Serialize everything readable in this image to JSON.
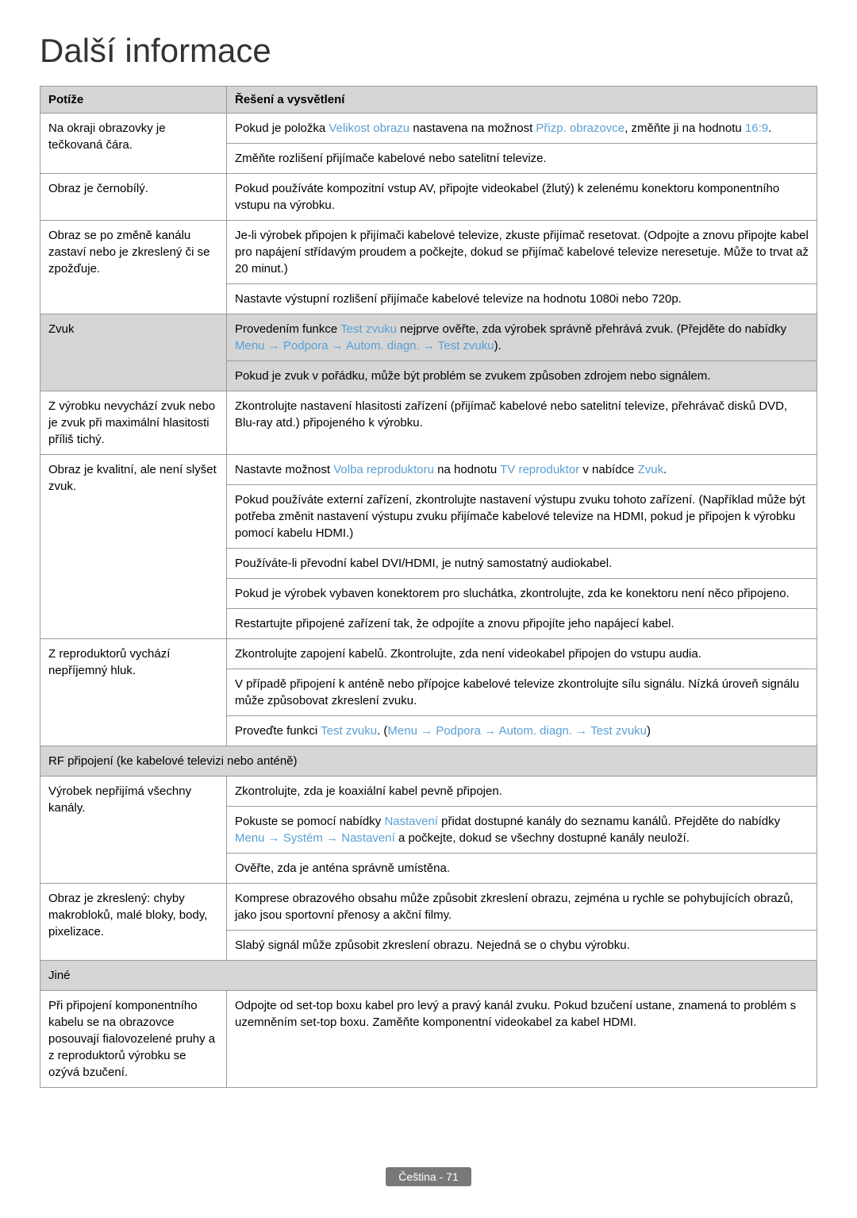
{
  "title": "Další informace",
  "colors": {
    "highlight": "#5a9fd4",
    "header_bg": "#d5d5d5",
    "border": "#999999",
    "text": "#000000",
    "badge_bg": "#787878",
    "badge_text": "#ffffff"
  },
  "headers": {
    "issue": "Potíže",
    "solution": "Řešení a vysvětlení"
  },
  "rows": [
    {
      "issue": "Na okraji obrazovky je tečkovaná čára.",
      "solutions": [
        {
          "segments": [
            {
              "t": "Pokud je položka "
            },
            {
              "t": "Velikost obrazu",
              "hl": true
            },
            {
              "t": " nastavena na možnost "
            },
            {
              "t": "Přizp. obrazovce",
              "hl": true
            },
            {
              "t": ", změňte ji na hodnotu "
            },
            {
              "t": "16:9",
              "hl": true
            },
            {
              "t": "."
            }
          ]
        },
        {
          "segments": [
            {
              "t": "Změňte rozlišení přijímače kabelové nebo satelitní televize."
            }
          ]
        }
      ]
    },
    {
      "issue": "Obraz je černobílý.",
      "solutions": [
        {
          "segments": [
            {
              "t": "Pokud používáte kompozitní vstup AV, připojte videokabel (žlutý) k zelenému konektoru komponentního vstupu na výrobku."
            }
          ]
        }
      ]
    },
    {
      "issue": "Obraz se po změně kanálu zastaví nebo je zkreslený či se zpožďuje.",
      "solutions": [
        {
          "segments": [
            {
              "t": "Je-li výrobek připojen k přijímači kabelové televize, zkuste přijímač resetovat. (Odpojte a znovu připojte kabel pro napájení střídavým proudem a počkejte, dokud se přijímač kabelové televize neresetuje. Může to trvat až 20 minut.)"
            }
          ]
        },
        {
          "segments": [
            {
              "t": "Nastavte výstupní rozlišení přijímače kabelové televize na hodnotu 1080i nebo 720p."
            }
          ]
        }
      ]
    },
    {
      "issue": "Zvuk",
      "section": false,
      "shaded_issue": true,
      "solutions": [
        {
          "segments": [
            {
              "t": "Provedením funkce "
            },
            {
              "t": "Test zvuku",
              "hl": true
            },
            {
              "t": " nejprve ověřte, zda výrobek správně přehrává zvuk. (Přejděte do nabídky "
            },
            {
              "t": "Menu",
              "hl": true
            },
            {
              "t": " → ",
              "hl": true
            },
            {
              "t": "Podpora",
              "hl": true
            },
            {
              "t": " → ",
              "hl": true
            },
            {
              "t": "Autom. diagn.",
              "hl": true
            },
            {
              "t": " → ",
              "hl": true
            },
            {
              "t": "Test zvuku",
              "hl": true
            },
            {
              "t": ")."
            }
          ]
        },
        {
          "segments": [
            {
              "t": "Pokud je zvuk v pořádku, může být problém se zvukem způsoben zdrojem nebo signálem."
            }
          ]
        }
      ]
    },
    {
      "issue": "Z výrobku nevychází zvuk nebo je zvuk při maximální hlasitosti příliš tichý.",
      "solutions": [
        {
          "segments": [
            {
              "t": "Zkontrolujte nastavení hlasitosti zařízení (přijímač kabelové nebo satelitní televize, přehrávač disků DVD, Blu-ray atd.) připojeného k výrobku."
            }
          ]
        }
      ]
    },
    {
      "issue": "Obraz je kvalitní, ale není slyšet zvuk.",
      "solutions": [
        {
          "segments": [
            {
              "t": "Nastavte možnost "
            },
            {
              "t": "Volba reproduktoru",
              "hl": true
            },
            {
              "t": " na hodnotu "
            },
            {
              "t": "TV reproduktor",
              "hl": true
            },
            {
              "t": " v nabídce "
            },
            {
              "t": "Zvuk",
              "hl": true
            },
            {
              "t": "."
            }
          ]
        },
        {
          "segments": [
            {
              "t": "Pokud používáte externí zařízení, zkontrolujte nastavení výstupu zvuku tohoto zařízení. (Například může být potřeba změnit nastavení výstupu zvuku přijímače kabelové televize na HDMI, pokud je připojen k výrobku pomocí kabelu HDMI.)"
            }
          ]
        },
        {
          "segments": [
            {
              "t": "Používáte-li převodní kabel DVI/HDMI, je nutný samostatný audiokabel."
            }
          ]
        },
        {
          "segments": [
            {
              "t": "Pokud je výrobek vybaven konektorem pro sluchátka, zkontrolujte, zda ke konektoru není něco připojeno."
            }
          ]
        },
        {
          "segments": [
            {
              "t": "Restartujte připojené zařízení tak, že odpojíte a znovu připojíte jeho napájecí kabel."
            }
          ]
        }
      ]
    },
    {
      "issue": "Z reproduktorů vychází nepříjemný hluk.",
      "solutions": [
        {
          "segments": [
            {
              "t": "Zkontrolujte zapojení kabelů. Zkontrolujte, zda není videokabel připojen do vstupu audia."
            }
          ]
        },
        {
          "segments": [
            {
              "t": "V případě připojení k anténě nebo přípojce kabelové televize zkontrolujte sílu signálu. Nízká úroveň signálu může způsobovat zkreslení zvuku."
            }
          ]
        },
        {
          "segments": [
            {
              "t": "Proveďte funkci "
            },
            {
              "t": "Test zvuku",
              "hl": true
            },
            {
              "t": ". ("
            },
            {
              "t": "Menu",
              "hl": true
            },
            {
              "t": " → ",
              "hl": true
            },
            {
              "t": "Podpora",
              "hl": true
            },
            {
              "t": " → ",
              "hl": true
            },
            {
              "t": "Autom. diagn.",
              "hl": true
            },
            {
              "t": " → ",
              "hl": true
            },
            {
              "t": "Test zvuku",
              "hl": true
            },
            {
              "t": ")"
            }
          ]
        }
      ]
    },
    {
      "section": true,
      "label": "RF připojení (ke kabelové televizi nebo anténě)"
    },
    {
      "issue": "Výrobek nepřijímá všechny kanály.",
      "solutions": [
        {
          "segments": [
            {
              "t": "Zkontrolujte, zda je koaxiální kabel pevně připojen."
            }
          ]
        },
        {
          "segments": [
            {
              "t": "Pokuste se pomocí nabídky "
            },
            {
              "t": "Nastavení",
              "hl": true
            },
            {
              "t": " přidat dostupné kanály do seznamu kanálů. Přejděte do nabídky "
            },
            {
              "t": "Menu",
              "hl": true
            },
            {
              "t": " → ",
              "hl": true
            },
            {
              "t": "Systém",
              "hl": true
            },
            {
              "t": " → ",
              "hl": true
            },
            {
              "t": "Nastavení",
              "hl": true
            },
            {
              "t": " a počkejte, dokud se všechny dostupné kanály neuloží."
            }
          ]
        },
        {
          "segments": [
            {
              "t": "Ověřte, zda je anténa správně umístěna."
            }
          ]
        }
      ]
    },
    {
      "issue": "Obraz je zkreslený: chyby makrobloků, malé bloky, body, pixelizace.",
      "solutions": [
        {
          "segments": [
            {
              "t": "Komprese obrazového obsahu může způsobit zkreslení obrazu, zejména u rychle se pohybujících obrazů, jako jsou sportovní přenosy a akční filmy."
            }
          ]
        },
        {
          "segments": [
            {
              "t": "Slabý signál může způsobit zkreslení obrazu. Nejedná se o chybu výrobku."
            }
          ]
        }
      ]
    },
    {
      "section": true,
      "label": "Jiné"
    },
    {
      "issue": "Při připojení komponentního kabelu se na obrazovce posouvají fialovozelené pruhy a z reproduktorů výrobku se ozývá bzučení.",
      "solutions": [
        {
          "segments": [
            {
              "t": "Odpojte od set-top boxu kabel pro levý a pravý kanál zvuku. Pokud bzučení ustane, znamená to problém s uzemněním set-top boxu. Zaměňte komponentní videokabel za kabel HDMI."
            }
          ]
        }
      ]
    }
  ],
  "footer": "Čeština - 71"
}
